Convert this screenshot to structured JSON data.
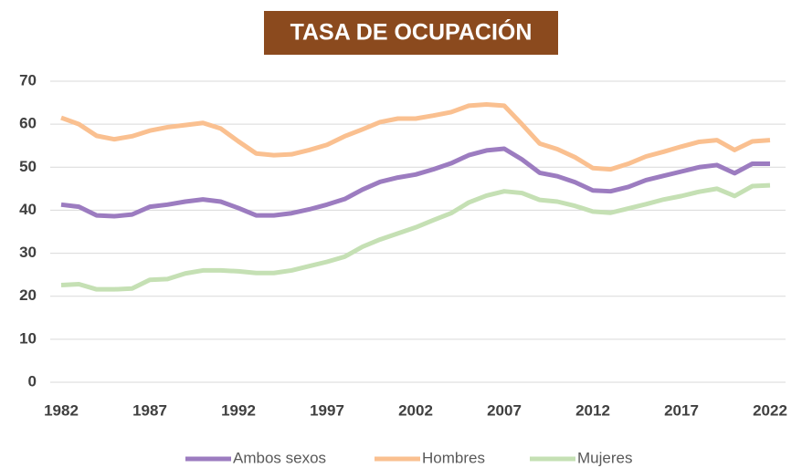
{
  "chart_data": {
    "type": "line",
    "title": "TASA DE OCUPACIÓN",
    "x": [
      1982,
      1983,
      1984,
      1985,
      1986,
      1987,
      1988,
      1989,
      1990,
      1991,
      1992,
      1993,
      1994,
      1995,
      1996,
      1997,
      1998,
      1999,
      2000,
      2001,
      2002,
      2003,
      2004,
      2005,
      2006,
      2007,
      2008,
      2009,
      2010,
      2011,
      2012,
      2013,
      2014,
      2015,
      2016,
      2017,
      2018,
      2019,
      2020,
      2021,
      2022
    ],
    "series": [
      {
        "name": "Ambos sexos",
        "color": "#9c7cc0",
        "values": [
          41.3,
          40.8,
          38.8,
          38.6,
          39,
          40.8,
          41.3,
          42,
          42.5,
          42,
          40.5,
          38.8,
          38.8,
          39.3,
          40.2,
          41.3,
          42.6,
          44.8,
          46.6,
          47.6,
          48.3,
          49.5,
          50.9,
          52.8,
          53.9,
          54.3,
          51.8,
          48.7,
          47.9,
          46.5,
          44.6,
          44.4,
          45.4,
          47,
          48,
          49,
          50,
          50.5,
          48.6,
          50.8,
          50.8
        ]
      },
      {
        "name": "Hombres",
        "color": "#fac090",
        "values": [
          61.5,
          60,
          57.3,
          56.5,
          57.2,
          58.5,
          59.3,
          59.8,
          60.3,
          59,
          56,
          53.2,
          52.8,
          53,
          54,
          55.2,
          57.2,
          58.8,
          60.5,
          61.3,
          61.3,
          62,
          62.8,
          64.3,
          64.6,
          64.3,
          60,
          55.5,
          54.2,
          52.3,
          49.8,
          49.5,
          50.8,
          52.5,
          53.6,
          54.8,
          55.9,
          56.3,
          54,
          56,
          56.3
        ]
      },
      {
        "name": "Mujeres",
        "color": "#c5e0b4",
        "values": [
          22.6,
          22.8,
          21.6,
          21.6,
          21.8,
          23.8,
          24,
          25.3,
          26,
          26,
          25.8,
          25.4,
          25.4,
          26,
          27,
          28,
          29.2,
          31.5,
          33.2,
          34.6,
          36,
          37.7,
          39.3,
          41.8,
          43.4,
          44.4,
          44,
          42.4,
          42,
          41,
          39.7,
          39.4,
          40.4,
          41.4,
          42.5,
          43.3,
          44.3,
          45,
          43.3,
          45.6,
          45.8
        ]
      }
    ],
    "xlim": [
      1982,
      2022
    ],
    "xticks": [
      1982,
      1987,
      1992,
      1997,
      2002,
      2007,
      2012,
      2017,
      2022
    ],
    "ylim": [
      0,
      70
    ],
    "yticks": [
      0,
      10,
      20,
      30,
      40,
      50,
      60,
      70
    ],
    "grid": true,
    "legend": "bottom"
  }
}
